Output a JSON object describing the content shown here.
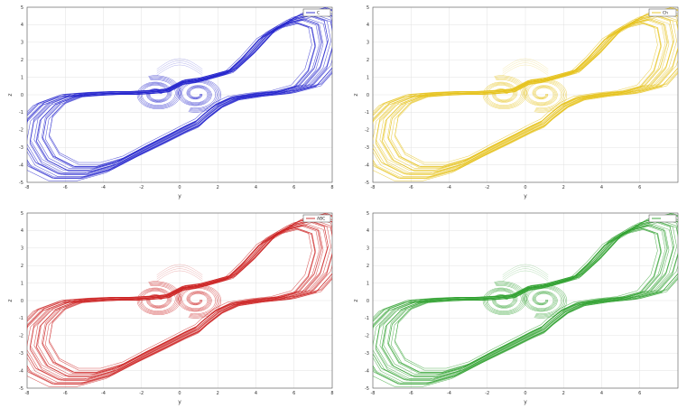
{
  "chart_data": [
    {
      "type": "line",
      "xlabel": "y",
      "ylabel": "z",
      "xlim": [
        -8,
        8
      ],
      "ylim": [
        -5,
        5
      ],
      "xticks": [
        -8,
        -6,
        -4,
        -2,
        0,
        2,
        4,
        6,
        8
      ],
      "yticks": [
        -5,
        -4,
        -3,
        -2,
        -1,
        0,
        1,
        2,
        3,
        4,
        5
      ],
      "grid": true,
      "legend_position": "top-right",
      "series": [
        {
          "name": "C",
          "color": "#2222cc"
        }
      ]
    },
    {
      "type": "line",
      "xlabel": "y",
      "ylabel": "z",
      "xlim": [
        -8,
        8
      ],
      "ylim": [
        -5,
        5
      ],
      "xticks": [
        -8,
        -6,
        -4,
        -2,
        0,
        2,
        4,
        6
      ],
      "yticks": [
        -5,
        -4,
        -3,
        -2,
        -1,
        0,
        1,
        2,
        3,
        4,
        5
      ],
      "grid": true,
      "legend_position": "top-right",
      "series": [
        {
          "name": "Ch",
          "color": "#e6c21a"
        }
      ]
    },
    {
      "type": "line",
      "xlabel": "y",
      "ylabel": "z",
      "xlim": [
        -8,
        8
      ],
      "ylim": [
        -5,
        5
      ],
      "xticks": [
        -8,
        -6,
        -4,
        -2,
        0,
        2,
        4,
        6,
        8
      ],
      "yticks": [
        -5,
        -4,
        -3,
        -2,
        -1,
        0,
        1,
        2,
        3,
        4,
        5
      ],
      "grid": true,
      "legend_position": "top-right",
      "series": [
        {
          "name": "ABC",
          "color": "#cc2222"
        }
      ]
    },
    {
      "type": "line",
      "xlabel": "y",
      "ylabel": "z",
      "xlim": [
        -8,
        8
      ],
      "ylim": [
        -5,
        5
      ],
      "xticks": [
        -8,
        -6,
        -4,
        -2,
        0,
        2,
        4,
        6
      ],
      "yticks": [
        -5,
        -4,
        -3,
        -2,
        -1,
        0,
        1,
        2,
        3,
        4,
        5
      ],
      "grid": true,
      "legend_position": "top-right",
      "series": [
        {
          "name": "",
          "color": "#2ea02e"
        }
      ]
    }
  ]
}
